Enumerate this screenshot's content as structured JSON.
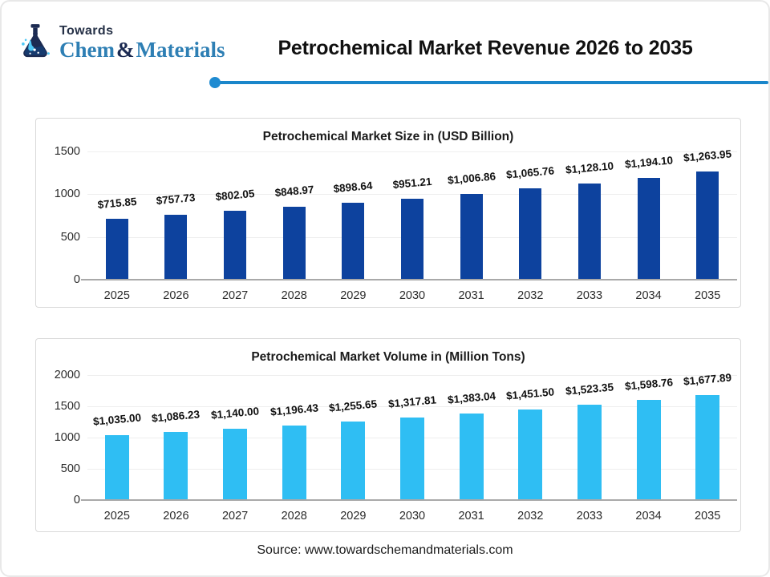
{
  "page": {
    "title": "Petrochemical Market Revenue 2026 to 2035",
    "source": "Source: www.towardschemandmaterials.com"
  },
  "logo": {
    "top": "Towards",
    "bottom_chem": "Chem",
    "bottom_amp": "&",
    "bottom_materials": "Materials"
  },
  "colors": {
    "brand_navy": "#1c2b52",
    "brand_blue": "#2e7fb4",
    "divider_blue": "#1a86ca",
    "chart1_bar": "#0d429e",
    "chart2_bar": "#2fbef3",
    "gridline": "#eeeeee",
    "axis_line": "#a9a9a9"
  },
  "chart_data": [
    {
      "type": "bar",
      "title": "Petrochemical Market Size in (USD Billion)",
      "xlabel": "",
      "ylabel": "",
      "categories": [
        "2025",
        "2026",
        "2027",
        "2028",
        "2029",
        "2030",
        "2031",
        "2032",
        "2033",
        "2034",
        "2035"
      ],
      "values": [
        715.85,
        757.73,
        802.05,
        848.97,
        898.64,
        951.21,
        1006.86,
        1065.76,
        1128.1,
        1194.1,
        1263.95
      ],
      "labels": [
        "$715.85",
        "$757.73",
        "$802.05",
        "$848.97",
        "$898.64",
        "$951.21",
        "$1,006.86",
        "$1,065.76",
        "$1,128.10",
        "$1,194.10",
        "$1,263.95"
      ],
      "yticks": [
        0,
        500,
        1000,
        1500
      ],
      "ylim": [
        0,
        1500
      ],
      "grid": true,
      "legend": false,
      "bar_color": "#0d429e"
    },
    {
      "type": "bar",
      "title": "Petrochemical Market Volume in (Million Tons)",
      "xlabel": "",
      "ylabel": "",
      "categories": [
        "2025",
        "2026",
        "2027",
        "2028",
        "2029",
        "2030",
        "2031",
        "2032",
        "2033",
        "2034",
        "2035"
      ],
      "values": [
        1035.0,
        1086.23,
        1140.0,
        1196.43,
        1255.65,
        1317.81,
        1383.04,
        1451.5,
        1523.35,
        1598.76,
        1677.89
      ],
      "labels": [
        "$1,035.00",
        "$1,086.23",
        "$1,140.00",
        "$1,196.43",
        "$1,255.65",
        "$1,317.81",
        "$1,383.04",
        "$1,451.50",
        "$1,523.35",
        "$1,598.76",
        "$1,677.89"
      ],
      "yticks": [
        0,
        500,
        1000,
        1500,
        2000
      ],
      "ylim": [
        0,
        2000
      ],
      "grid": true,
      "legend": false,
      "bar_color": "#2fbef3"
    }
  ]
}
